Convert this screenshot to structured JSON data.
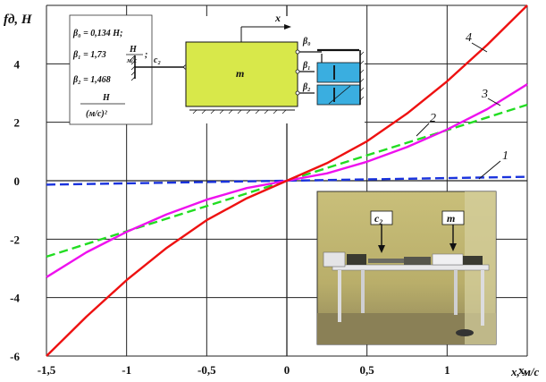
{
  "chart_data": {
    "type": "line",
    "xlabel": "x, м/с",
    "ylabel": "fд, Н",
    "xlim": [
      -1.5,
      1.5
    ],
    "ylim": [
      -6,
      6
    ],
    "x_ticks": [
      "-1,5",
      "-1",
      "-0,5",
      "0",
      "0,5",
      "1",
      "x,"
    ],
    "y_ticks": [
      "-6",
      "-4",
      "-2",
      "0",
      "2",
      "4"
    ],
    "grid": true,
    "series": [
      {
        "name": "1",
        "color": "#1a33dd",
        "style": "dashed",
        "x": [
          -1.5,
          1.5
        ],
        "y": [
          -0.134,
          0.134
        ]
      },
      {
        "name": "2",
        "color": "#22dd22",
        "style": "dashed",
        "x": [
          -1.5,
          -1.0,
          -0.5,
          0,
          0.5,
          1.0,
          1.5
        ],
        "y": [
          -2.6,
          -1.73,
          -0.87,
          0,
          0.87,
          1.73,
          2.6
        ]
      },
      {
        "name": "3",
        "color": "#ee11ee",
        "style": "solid",
        "x": [
          -1.5,
          -1.25,
          -1.0,
          -0.75,
          -0.5,
          -0.25,
          0,
          0.25,
          0.5,
          0.75,
          1.0,
          1.25,
          1.5
        ],
        "y": [
          -3.3,
          -2.45,
          -1.75,
          -1.15,
          -0.65,
          -0.25,
          0,
          0.25,
          0.65,
          1.15,
          1.75,
          2.45,
          3.3
        ]
      },
      {
        "name": "4",
        "color": "#ee1111",
        "style": "solid",
        "x": [
          -1.5,
          -1.25,
          -1.0,
          -0.75,
          -0.5,
          -0.25,
          0,
          0.25,
          0.5,
          0.75,
          1.0,
          1.25,
          1.5
        ],
        "y": [
          -6.0,
          -4.65,
          -3.4,
          -2.3,
          -1.35,
          -0.6,
          0,
          0.6,
          1.35,
          2.3,
          3.4,
          4.65,
          6.0
        ]
      }
    ]
  },
  "inset": {
    "param_1": "β₀ = 0,134 Н;",
    "param_2": "β₁ = 1,73",
    "param_2_unit_num": "Н",
    "param_2_unit_den": "м/с",
    "param_2_end": ";",
    "param_3": "β₂ = 1,468",
    "param_3_unit_num": "Н",
    "param_3_unit_den": "(м/с)²",
    "mass_label": "m",
    "spring_label": "c₂",
    "x_label": "x",
    "beta0_label": "β₀",
    "beta1_label": "β₁",
    "beta2_label": "β₂"
  },
  "photo": {
    "label_c2": "c₂",
    "label_m": "m"
  }
}
